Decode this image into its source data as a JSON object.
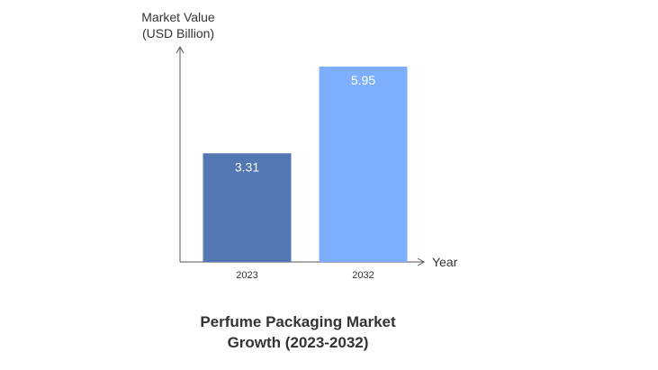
{
  "chart_data": {
    "type": "bar",
    "title": [
      "Perfume Packaging Market",
      "Growth (2023-2032)"
    ],
    "xlabel": "Year",
    "ylabel": [
      "Market Value",
      "(USD Billion)"
    ],
    "categories": [
      "2023",
      "2032"
    ],
    "values": [
      3.31,
      5.95
    ],
    "value_labels": [
      "3.31",
      "5.95"
    ],
    "ylim": [
      0,
      5.95
    ],
    "grid": false,
    "legend": "none",
    "colors": [
      "#5377b3",
      "#7eafff"
    ],
    "axis_color": "#555555",
    "label_color": "#ffffff"
  }
}
